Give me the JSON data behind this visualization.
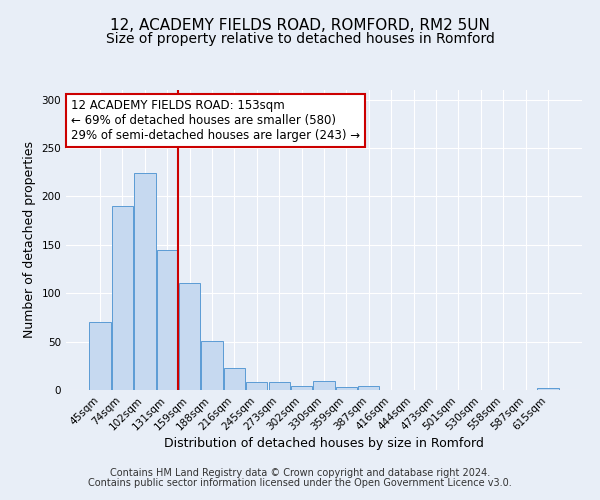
{
  "title": "12, ACADEMY FIELDS ROAD, ROMFORD, RM2 5UN",
  "subtitle": "Size of property relative to detached houses in Romford",
  "xlabel": "Distribution of detached houses by size in Romford",
  "ylabel": "Number of detached properties",
  "bar_labels": [
    "45sqm",
    "74sqm",
    "102sqm",
    "131sqm",
    "159sqm",
    "188sqm",
    "216sqm",
    "245sqm",
    "273sqm",
    "302sqm",
    "330sqm",
    "359sqm",
    "387sqm",
    "416sqm",
    "444sqm",
    "473sqm",
    "501sqm",
    "530sqm",
    "558sqm",
    "587sqm",
    "615sqm"
  ],
  "bar_values": [
    70,
    190,
    224,
    145,
    111,
    51,
    23,
    8,
    8,
    4,
    9,
    3,
    4,
    0,
    0,
    0,
    0,
    0,
    0,
    0,
    2
  ],
  "bar_color": "#c6d9f0",
  "bar_edge_color": "#5b9bd5",
  "vline_x": 3.5,
  "vline_color": "#cc0000",
  "annotation_text": "12 ACADEMY FIELDS ROAD: 153sqm\n← 69% of detached houses are smaller (580)\n29% of semi-detached houses are larger (243) →",
  "annotation_box_color": "#ffffff",
  "annotation_box_edge_color": "#cc0000",
  "ylim": [
    0,
    310
  ],
  "yticks": [
    0,
    50,
    100,
    150,
    200,
    250,
    300
  ],
  "footer_line1": "Contains HM Land Registry data © Crown copyright and database right 2024.",
  "footer_line2": "Contains public sector information licensed under the Open Government Licence v3.0.",
  "bg_color": "#e8eef7",
  "plot_bg_color": "#e8eef7",
  "title_fontsize": 11,
  "subtitle_fontsize": 10,
  "axis_label_fontsize": 9,
  "tick_fontsize": 7.5,
  "footer_fontsize": 7
}
